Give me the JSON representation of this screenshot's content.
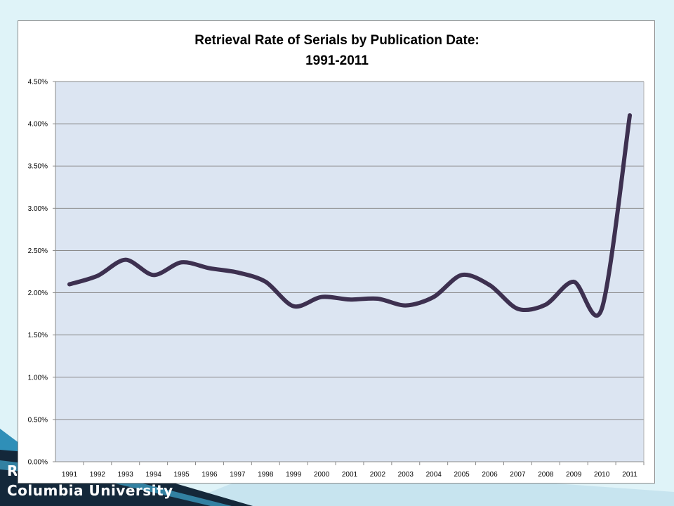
{
  "slide": {
    "footer_line_1": "R",
    "footer_line_2": "Columbia University",
    "colors": {
      "background": "#dff3f8",
      "footer_dark": "#14283a",
      "footer_teal": "#2f8fb8",
      "footer_light": "#c7e4ef"
    }
  },
  "chart_data": {
    "type": "line",
    "title_line_1": "Retrieval Rate of Serials by Publication Date:",
    "title_line_2": "1991-2011",
    "xlabel": "",
    "ylabel": "",
    "categories": [
      "1991",
      "1992",
      "1993",
      "1994",
      "1995",
      "1996",
      "1997",
      "1998",
      "1999",
      "2000",
      "2001",
      "2002",
      "2003",
      "2004",
      "2005",
      "2006",
      "2007",
      "2008",
      "2009",
      "2010",
      "2011"
    ],
    "series": [
      {
        "values": [
          2.1,
          2.2,
          2.39,
          2.21,
          2.36,
          2.29,
          2.24,
          2.13,
          1.84,
          1.95,
          1.92,
          1.93,
          1.85,
          1.95,
          2.21,
          2.09,
          1.81,
          1.86,
          2.13,
          1.81,
          4.1
        ],
        "color": "#3d3050"
      }
    ],
    "yticks": [
      "0.00%",
      "0.50%",
      "1.00%",
      "1.50%",
      "2.00%",
      "2.50%",
      "3.00%",
      "3.50%",
      "4.00%",
      "4.50%"
    ],
    "ylim": [
      0,
      4.5
    ],
    "y_unit": "%",
    "grid": true,
    "legend": "none",
    "plot_background": "#dce5f2",
    "grid_color": "#8a8a8a"
  }
}
